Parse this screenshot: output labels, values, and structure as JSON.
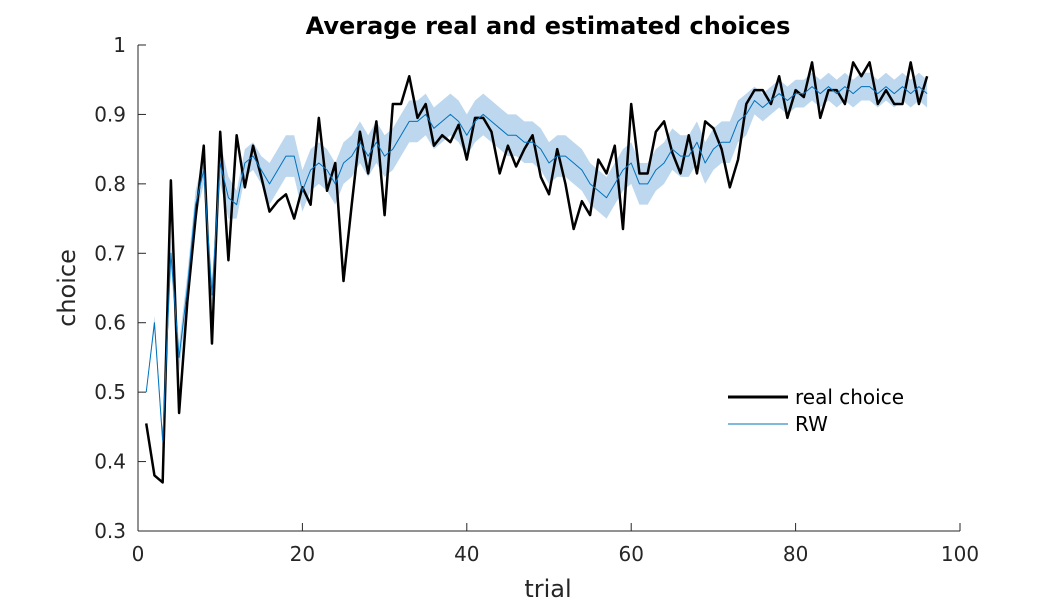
{
  "chart_data": {
    "type": "line",
    "title": "Average real and estimated choices",
    "xlabel": "trial",
    "ylabel": "choice",
    "xlim": [
      0,
      100
    ],
    "ylim": [
      0.3,
      1
    ],
    "xticks": [
      "0",
      "20",
      "40",
      "60",
      "80",
      "100"
    ],
    "yticks": [
      "0.3",
      "0.4",
      "0.5",
      "0.6",
      "0.7",
      "0.8",
      "0.9",
      "1"
    ],
    "grid": false,
    "legend_position": "lower-right",
    "series": [
      {
        "name": "real choice",
        "color": "#000000",
        "x": [
          1,
          2,
          3,
          4,
          5,
          6,
          7,
          8,
          9,
          10,
          11,
          12,
          13,
          14,
          15,
          16,
          17,
          18,
          19,
          20,
          21,
          22,
          23,
          24,
          25,
          26,
          27,
          28,
          29,
          30,
          31,
          32,
          33,
          34,
          35,
          36,
          37,
          38,
          39,
          40,
          41,
          42,
          43,
          44,
          45,
          46,
          47,
          48,
          49,
          50,
          51,
          52,
          53,
          54,
          55,
          56,
          57,
          58,
          59,
          60,
          61,
          62,
          63,
          64,
          65,
          66,
          67,
          68,
          69,
          70,
          71,
          72,
          73,
          74,
          75,
          76,
          77,
          78,
          79,
          80,
          81,
          82,
          83,
          84,
          85,
          86,
          87,
          88,
          89,
          90,
          91,
          92,
          93,
          94,
          95,
          96
        ],
        "y": [
          0.455,
          0.38,
          0.37,
          0.805,
          0.47,
          0.63,
          0.75,
          0.855,
          0.57,
          0.875,
          0.69,
          0.87,
          0.795,
          0.855,
          0.81,
          0.76,
          0.775,
          0.785,
          0.75,
          0.795,
          0.77,
          0.895,
          0.79,
          0.83,
          0.66,
          0.77,
          0.875,
          0.815,
          0.89,
          0.755,
          0.915,
          0.915,
          0.955,
          0.895,
          0.915,
          0.855,
          0.87,
          0.86,
          0.885,
          0.835,
          0.895,
          0.895,
          0.875,
          0.815,
          0.855,
          0.825,
          0.85,
          0.87,
          0.81,
          0.785,
          0.85,
          0.8,
          0.735,
          0.775,
          0.755,
          0.835,
          0.815,
          0.855,
          0.735,
          0.915,
          0.815,
          0.815,
          0.875,
          0.89,
          0.845,
          0.815,
          0.87,
          0.815,
          0.89,
          0.88,
          0.85,
          0.795,
          0.835,
          0.915,
          0.935,
          0.935,
          0.915,
          0.955,
          0.895,
          0.935,
          0.925,
          0.975,
          0.895,
          0.935,
          0.935,
          0.915,
          0.975,
          0.955,
          0.975,
          0.915,
          0.935,
          0.915,
          0.915,
          0.975,
          0.915,
          0.955
        ]
      },
      {
        "name": "RW",
        "color": "#0072BD",
        "band_color": "#BDD7EE",
        "x": [
          1,
          2,
          3,
          4,
          5,
          6,
          7,
          8,
          9,
          10,
          11,
          12,
          13,
          14,
          15,
          16,
          17,
          18,
          19,
          20,
          21,
          22,
          23,
          24,
          25,
          26,
          27,
          28,
          29,
          30,
          31,
          32,
          33,
          34,
          35,
          36,
          37,
          38,
          39,
          40,
          41,
          42,
          43,
          44,
          45,
          46,
          47,
          48,
          49,
          50,
          51,
          52,
          53,
          54,
          55,
          56,
          57,
          58,
          59,
          60,
          61,
          62,
          63,
          64,
          65,
          66,
          67,
          68,
          69,
          70,
          71,
          72,
          73,
          74,
          75,
          76,
          77,
          78,
          79,
          80,
          81,
          82,
          83,
          84,
          85,
          86,
          87,
          88,
          89,
          90,
          91,
          92,
          93,
          94,
          95,
          96
        ],
        "y": [
          0.5,
          0.6,
          0.43,
          0.7,
          0.55,
          0.65,
          0.77,
          0.82,
          0.64,
          0.83,
          0.78,
          0.77,
          0.83,
          0.84,
          0.82,
          0.8,
          0.82,
          0.84,
          0.84,
          0.79,
          0.82,
          0.83,
          0.82,
          0.8,
          0.83,
          0.84,
          0.86,
          0.84,
          0.86,
          0.84,
          0.85,
          0.87,
          0.89,
          0.89,
          0.9,
          0.88,
          0.89,
          0.9,
          0.89,
          0.87,
          0.89,
          0.9,
          0.89,
          0.88,
          0.87,
          0.87,
          0.86,
          0.86,
          0.85,
          0.83,
          0.84,
          0.84,
          0.83,
          0.82,
          0.8,
          0.79,
          0.78,
          0.8,
          0.82,
          0.83,
          0.8,
          0.8,
          0.82,
          0.83,
          0.85,
          0.84,
          0.84,
          0.86,
          0.83,
          0.85,
          0.86,
          0.86,
          0.89,
          0.9,
          0.92,
          0.91,
          0.92,
          0.93,
          0.92,
          0.93,
          0.93,
          0.94,
          0.93,
          0.94,
          0.93,
          0.94,
          0.93,
          0.94,
          0.94,
          0.93,
          0.94,
          0.93,
          0.94,
          0.93,
          0.94,
          0.93
        ],
        "lower": [
          0.5,
          0.59,
          0.42,
          0.68,
          0.53,
          0.63,
          0.75,
          0.8,
          0.62,
          0.8,
          0.75,
          0.75,
          0.81,
          0.82,
          0.8,
          0.77,
          0.79,
          0.81,
          0.81,
          0.76,
          0.79,
          0.8,
          0.79,
          0.77,
          0.8,
          0.81,
          0.83,
          0.81,
          0.83,
          0.81,
          0.82,
          0.84,
          0.86,
          0.86,
          0.87,
          0.85,
          0.86,
          0.87,
          0.86,
          0.84,
          0.86,
          0.87,
          0.86,
          0.85,
          0.84,
          0.84,
          0.83,
          0.83,
          0.82,
          0.8,
          0.81,
          0.81,
          0.8,
          0.79,
          0.77,
          0.76,
          0.75,
          0.77,
          0.79,
          0.8,
          0.77,
          0.77,
          0.79,
          0.8,
          0.82,
          0.81,
          0.81,
          0.83,
          0.8,
          0.82,
          0.83,
          0.83,
          0.86,
          0.87,
          0.9,
          0.89,
          0.9,
          0.91,
          0.9,
          0.91,
          0.91,
          0.92,
          0.91,
          0.92,
          0.91,
          0.92,
          0.91,
          0.92,
          0.92,
          0.91,
          0.92,
          0.91,
          0.92,
          0.91,
          0.92,
          0.91
        ],
        "upper": [
          0.5,
          0.61,
          0.44,
          0.72,
          0.57,
          0.67,
          0.79,
          0.84,
          0.66,
          0.86,
          0.81,
          0.79,
          0.85,
          0.86,
          0.84,
          0.83,
          0.85,
          0.87,
          0.87,
          0.82,
          0.85,
          0.86,
          0.85,
          0.83,
          0.86,
          0.87,
          0.89,
          0.87,
          0.89,
          0.87,
          0.88,
          0.9,
          0.92,
          0.92,
          0.93,
          0.91,
          0.92,
          0.93,
          0.92,
          0.9,
          0.92,
          0.93,
          0.92,
          0.91,
          0.9,
          0.9,
          0.89,
          0.89,
          0.88,
          0.86,
          0.87,
          0.87,
          0.86,
          0.85,
          0.83,
          0.82,
          0.81,
          0.83,
          0.85,
          0.86,
          0.83,
          0.83,
          0.85,
          0.86,
          0.88,
          0.87,
          0.87,
          0.89,
          0.86,
          0.88,
          0.89,
          0.89,
          0.92,
          0.93,
          0.94,
          0.93,
          0.94,
          0.95,
          0.94,
          0.95,
          0.95,
          0.96,
          0.95,
          0.96,
          0.95,
          0.96,
          0.95,
          0.96,
          0.96,
          0.95,
          0.96,
          0.95,
          0.96,
          0.95,
          0.96,
          0.95
        ]
      }
    ]
  }
}
